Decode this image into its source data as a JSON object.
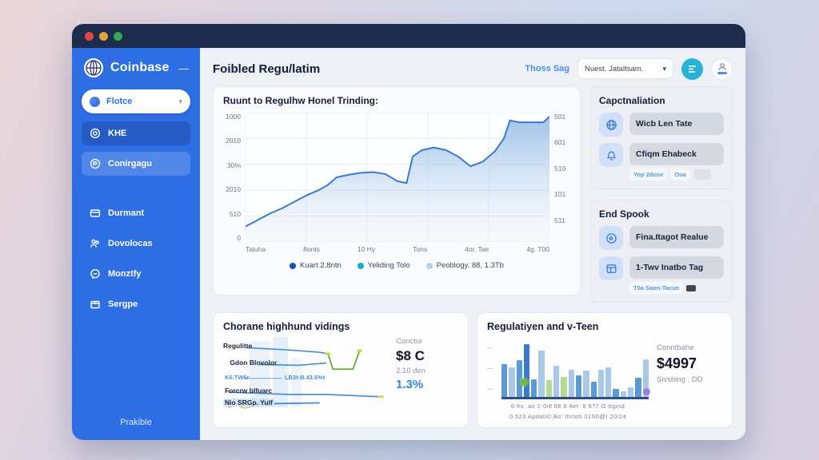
{
  "sidebar": {
    "brand": "Coinbase",
    "collapse_label": "—",
    "selector": {
      "label": "Flotce",
      "chevron": "▾"
    },
    "items": [
      {
        "label": "KHE"
      },
      {
        "label": "Conirgagu"
      },
      {
        "label": "Durmant"
      },
      {
        "label": "Dovolocas"
      },
      {
        "label": "Monztfy"
      },
      {
        "label": "Sergpe"
      }
    ],
    "footer": "Prakible"
  },
  "header": {
    "title": "Foibled Regu/latim",
    "link": "Thoss Sag",
    "select_value": "Nuest. Jataltsam.",
    "select_chevron": "▾"
  },
  "right_cards": [
    {
      "title": "Capctnaliation",
      "items": [
        {
          "label": "Wicb Len Tate",
          "chips": []
        },
        {
          "label": "Cfiqm Ehabeck",
          "chips": [
            "Yop 2dose",
            "Oua"
          ]
        }
      ]
    },
    {
      "title": "End Spook",
      "items": [
        {
          "label": "Fina.Itagot Realue",
          "chips": []
        },
        {
          "label": "1-Twv Inatbo Tag",
          "chips": [
            "T0a Saon-Tacun"
          ]
        }
      ]
    }
  ],
  "mini_card": {
    "overlay_labels": {
      "l1": "Regulitte",
      "l2": "Gdon Blovolor",
      "l3": "K6.TW6r",
      "l4": "LB3t-B.43.6%t",
      "l5": "Forcrw blfuarc",
      "l6": "Nio SRGp. Yulf"
    }
  },
  "chart_data": [
    {
      "type": "area",
      "title": "Ruunt to Regulhw Honel Trinding:",
      "x_labels": [
        "Taluha",
        "8onts",
        "10 Hy",
        "Tons",
        "4or. Tae",
        "4g. T00"
      ],
      "y_ticks_left": [
        "1000",
        "2010",
        "30%",
        "2010",
        "510",
        "0"
      ],
      "y_ticks_right": [
        "501",
        "601",
        "510",
        "101",
        "511",
        ""
      ],
      "ylim_note": "garbled AI ticks as rendered",
      "grid": true,
      "legend_position": "bottom",
      "line_color": "#3b79d6",
      "fill_top": "#8fb8e6",
      "fill_bottom": "#dbe7f5",
      "legend": [
        {
          "label": "Kuart 2,8ntn",
          "color": "#1d4fc0"
        },
        {
          "label": "Yeliding Tolo",
          "color": "#14b0c4"
        },
        {
          "label": "Peoblogy. 88, 1.3Tb",
          "color": "#b7d0ea"
        }
      ],
      "points": [
        [
          0,
          0.12
        ],
        [
          4,
          0.17
        ],
        [
          8,
          0.22
        ],
        [
          12,
          0.26
        ],
        [
          16,
          0.31
        ],
        [
          20,
          0.36
        ],
        [
          24,
          0.4
        ],
        [
          27,
          0.44
        ],
        [
          30,
          0.5
        ],
        [
          34,
          0.52
        ],
        [
          38,
          0.535
        ],
        [
          42,
          0.54
        ],
        [
          46,
          0.525
        ],
        [
          50,
          0.47
        ],
        [
          53,
          0.455
        ],
        [
          55,
          0.66
        ],
        [
          58,
          0.71
        ],
        [
          62,
          0.73
        ],
        [
          66,
          0.71
        ],
        [
          70,
          0.66
        ],
        [
          74,
          0.585
        ],
        [
          78,
          0.62
        ],
        [
          82,
          0.7
        ],
        [
          85,
          0.8
        ],
        [
          87,
          0.94
        ],
        [
          90,
          0.925
        ],
        [
          94,
          0.925
        ],
        [
          98,
          0.925
        ],
        [
          100,
          0.97
        ]
      ]
    },
    {
      "type": "line",
      "title": "Chorane highhund vidings",
      "lines": [
        {
          "color": "#3e8ad8",
          "width": 1.6,
          "points": [
            [
              14,
              16
            ],
            [
              40,
              19
            ],
            [
              58,
              22
            ],
            [
              63,
              24
            ]
          ]
        },
        {
          "color": "#6aab2e",
          "width": 1.8,
          "points": [
            [
              63,
              24
            ],
            [
              66,
              44
            ],
            [
              78,
              44
            ],
            [
              82,
              20
            ]
          ]
        },
        {
          "color": "#3e8ad8",
          "width": 1.6,
          "points": [
            [
              22,
              38
            ],
            [
              45,
              39
            ],
            [
              62,
              36
            ]
          ]
        },
        {
          "color": "#5fa0dc",
          "width": 1.0,
          "points": [
            [
              13,
              56
            ],
            [
              35,
              56
            ]
          ]
        },
        {
          "color": "#3e8ad8",
          "width": 1.6,
          "points": [
            [
              3,
              74
            ],
            [
              40,
              77
            ],
            [
              62,
              77
            ],
            [
              95,
              80
            ]
          ]
        },
        {
          "color": "#3e8ad8",
          "width": 1.8,
          "points": [
            [
              2,
              88
            ],
            [
              30,
              89
            ],
            [
              58,
              88
            ]
          ]
        },
        {
          "color": "#8abf4a",
          "width": 1.0,
          "points": [
            [
              3,
              94
            ],
            [
              8,
              91
            ],
            [
              13,
              95
            ],
            [
              18,
              92
            ]
          ]
        }
      ],
      "end_dots": [
        {
          "x": 63,
          "y": 24,
          "color": "#cbd94e"
        },
        {
          "x": 82,
          "y": 20,
          "color": "#cbd94e"
        },
        {
          "x": 95,
          "y": 80,
          "color": "#d3dc5a"
        }
      ],
      "stats": {
        "label": "Conctur",
        "value": "$8 C",
        "sub": "2.10 den",
        "percent": "1.3%"
      }
    },
    {
      "type": "bar",
      "title": "Regulatiyen and v-Teen",
      "bar_colors": {
        "med": "#5b9bd5",
        "light": "#aac9e8",
        "dark": "#3a7bc8",
        "green": "#b5dc8e"
      },
      "left_dashes": [
        "—",
        "—",
        "—"
      ],
      "bars": [
        {
          "h": 0.55,
          "c": "med"
        },
        {
          "h": 0.5,
          "c": "light"
        },
        {
          "h": 0.62,
          "c": "med"
        },
        {
          "h": 0.88,
          "c": "dark"
        },
        {
          "h": 0.3,
          "c": "med"
        },
        {
          "h": 0.78,
          "c": "light"
        },
        {
          "h": 0.28,
          "c": "green"
        },
        {
          "h": 0.52,
          "c": "light"
        },
        {
          "h": 0.33,
          "c": "green"
        },
        {
          "h": 0.46,
          "c": "light"
        },
        {
          "h": 0.36,
          "c": "med"
        },
        {
          "h": 0.44,
          "c": "light"
        },
        {
          "h": 0.26,
          "c": "med"
        },
        {
          "h": 0.46,
          "c": "light"
        },
        {
          "h": 0.5,
          "c": "light"
        },
        {
          "h": 0.13,
          "c": "med"
        },
        {
          "h": 0.1,
          "c": "light"
        },
        {
          "h": 0.16,
          "c": "light"
        },
        {
          "h": 0.32,
          "c": "med"
        },
        {
          "h": 0.63,
          "c": "light"
        }
      ],
      "axis_row1": "6-hs .ao    1-0i8    66 8    4et- 8 9?7 G ttgind",
      "axis_row2": "0.523   Apdati©.Bo' thrtoh 31S6@!   20/24",
      "stats": {
        "label": "Conntbahe",
        "value": "$4997",
        "sub": "Sivsbing : DD"
      }
    }
  ]
}
